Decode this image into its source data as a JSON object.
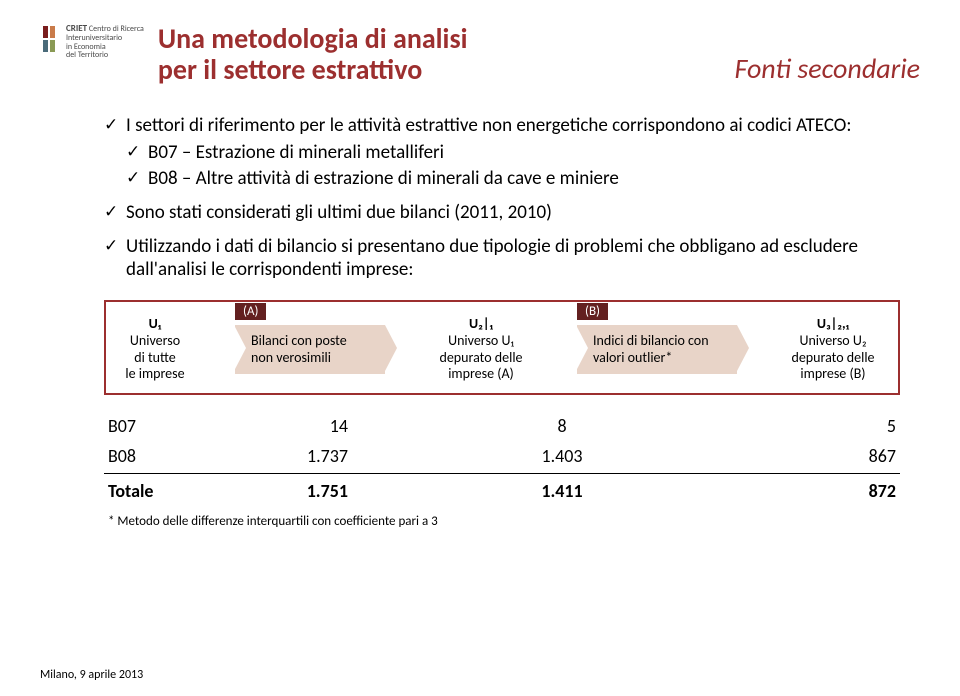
{
  "theme": {
    "accent": "#9c2f2f",
    "tag_bg": "#632020",
    "arrow_fill": "#e8d4c8",
    "arrow_border": "#9c2f2f",
    "flow_border": "#9c2f2f"
  },
  "logo": {
    "acronym": "CRIET",
    "line1": "Centro di Ricerca",
    "line2": "Interuniversitario",
    "line3": "in Economia",
    "line4": "del Territorio"
  },
  "header": {
    "title_l1": "Una metodologia di analisi",
    "title_l2": "per il settore estrattivo",
    "secondary": "Fonti secondarie"
  },
  "bullets": {
    "b1": "I settori di riferimento per le attività estrattive non energetiche corrispondono ai codici ATECO:",
    "b1a": "B07 – Estrazione di minerali metalliferi",
    "b1b": "B08 – Altre attività di estrazione di minerali da cave e miniere",
    "b2": "Sono stati considerati gli ultimi due bilanci (2011, 2010)",
    "b3": "Utilizzando i dati di bilancio si presentano due tipologie di problemi che obbligano ad escludere dall'analisi le corrispondenti imprese:"
  },
  "flow": {
    "u1": {
      "sym": "U₁",
      "l1": "Universo",
      "l2": "di tutte",
      "l3": "le imprese"
    },
    "tagA": "(A)",
    "a": {
      "l1": "Bilanci con poste",
      "l2": "non verosimili"
    },
    "u2": {
      "sym": "U₂|₁",
      "l1": "Universo U₁",
      "l2": "depurato delle",
      "l3": "imprese (A)"
    },
    "tagB": "(B)",
    "b": {
      "l1": "Indici di bilancio con",
      "l2": "valori outlier*"
    },
    "u3": {
      "sym": "U₃|₂,₁",
      "l1": "Universo U₂",
      "l2": "depurato delle",
      "l3": "imprese (B)"
    }
  },
  "table": {
    "rows": [
      {
        "label": "B07",
        "v1": "14",
        "v2": "8",
        "v3": "5"
      },
      {
        "label": "B08",
        "v1": "1.737",
        "v2": "1.403",
        "v3": "867"
      }
    ],
    "total": {
      "label": "Totale",
      "v1": "1.751",
      "v2": "1.411",
      "v3": "872"
    }
  },
  "footnote": "* Metodo delle differenze interquartili con coefficiente pari a 3",
  "footer": "Milano, 9 aprile 2013"
}
